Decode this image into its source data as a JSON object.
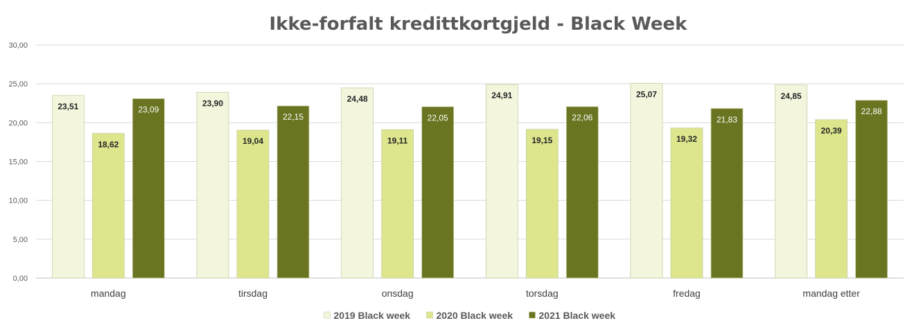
{
  "chart_data": {
    "type": "bar",
    "title": "Ikke-forfalt kredittkortgjeld  - Black Week",
    "xlabel": "",
    "ylabel": "",
    "categories": [
      "mandag",
      "tirsdag",
      "onsdag",
      "torsdag",
      "fredag",
      "mandag etter"
    ],
    "series": [
      {
        "name": "2019 Black week",
        "values": [
          23.51,
          23.9,
          24.48,
          24.91,
          25.07,
          24.85
        ],
        "color": "#f3f6dd",
        "value_labels": [
          "23,51",
          "23,90",
          "24,48",
          "24,91",
          "25,07",
          "24,85"
        ]
      },
      {
        "name": "2020 Black week",
        "values": [
          18.62,
          19.04,
          19.11,
          19.15,
          19.32,
          20.39
        ],
        "color": "#dde68c",
        "value_labels": [
          "18,62",
          "19,04",
          "19,11",
          "19,15",
          "19,32",
          "20,39"
        ]
      },
      {
        "name": "2021 Black week",
        "values": [
          23.09,
          22.15,
          22.05,
          22.06,
          21.83,
          22.88
        ],
        "color": "#6a7421",
        "value_labels": [
          "23,09",
          "22,15",
          "22,05",
          "22,06",
          "21,83",
          "22,88"
        ]
      }
    ],
    "ylim": [
      0,
      30
    ],
    "yticks": [
      0,
      5,
      10,
      15,
      20,
      25,
      30
    ],
    "ytick_labels": [
      "0,00",
      "5,00",
      "10,00",
      "15,00",
      "20,00",
      "25,00",
      "30,00"
    ],
    "grid": true,
    "legend_position": "bottom-center"
  }
}
